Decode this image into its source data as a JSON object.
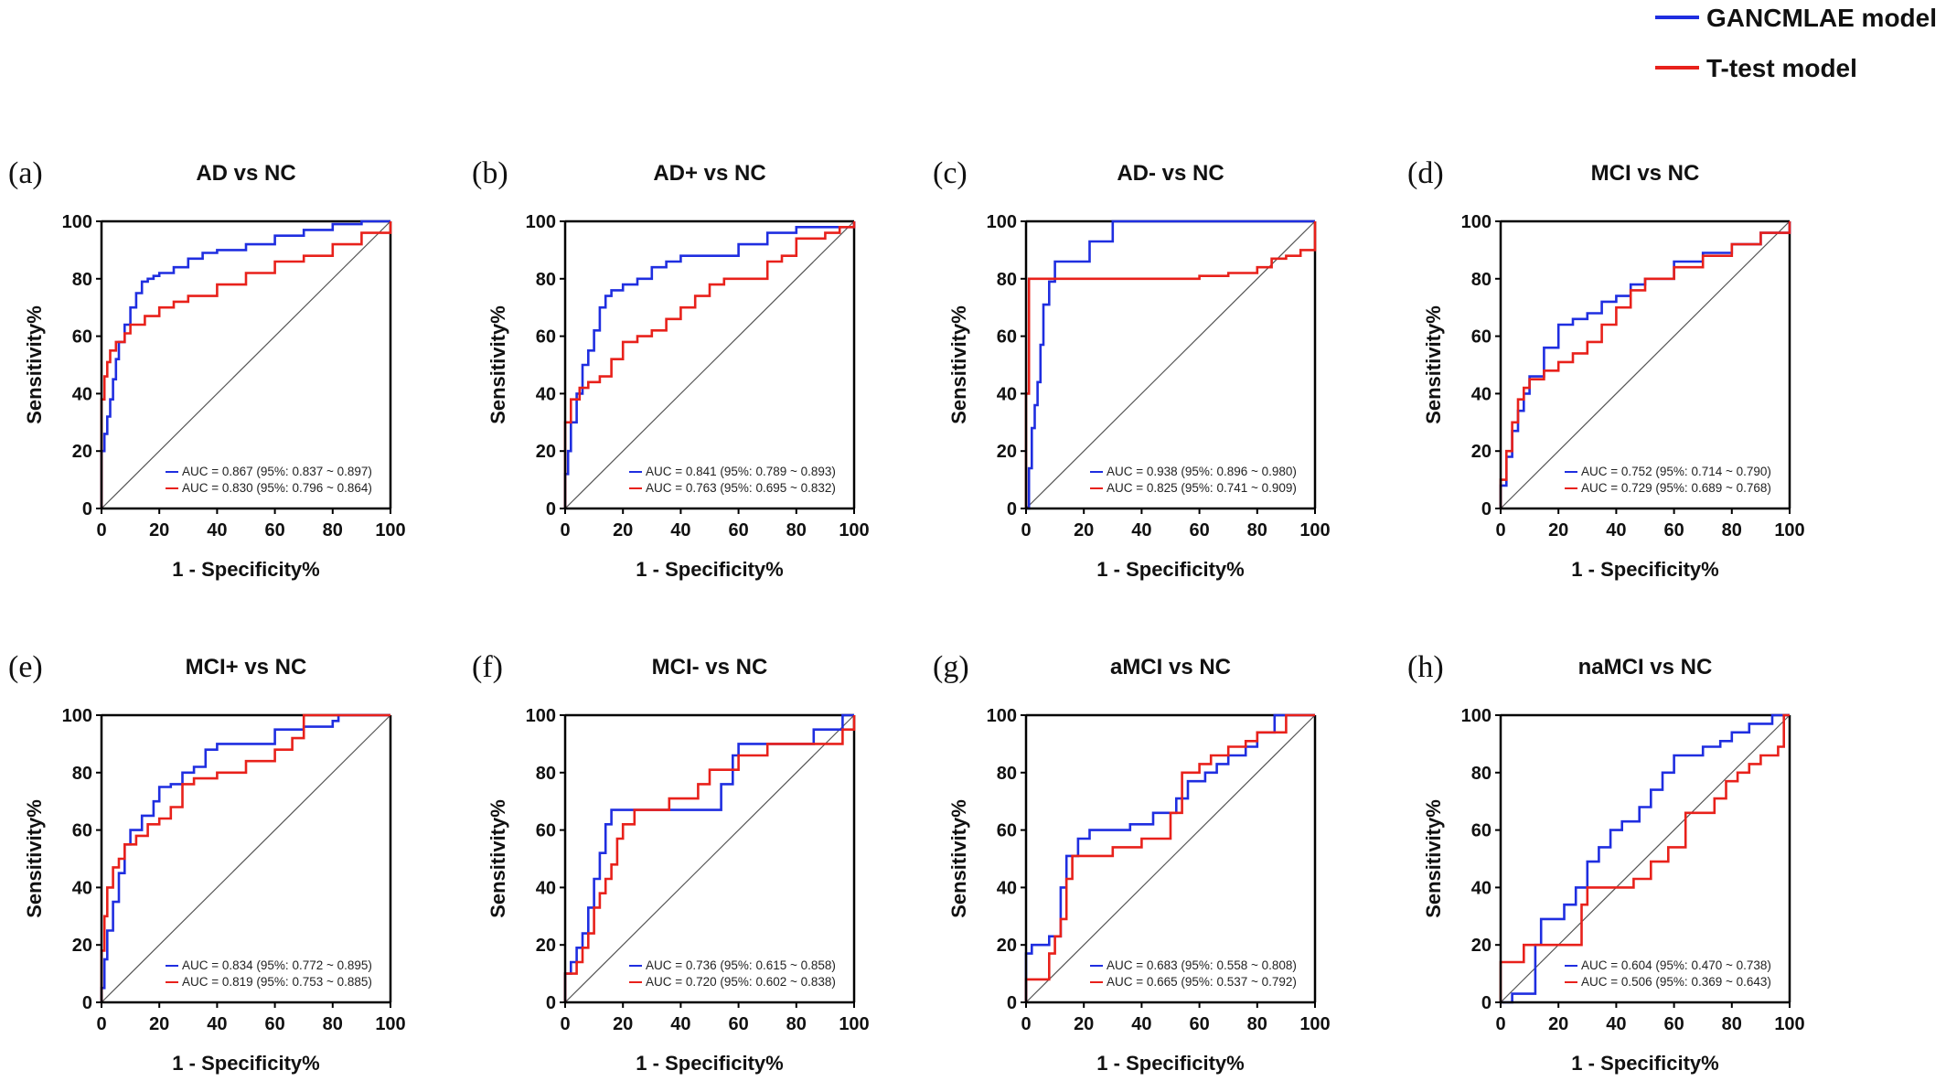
{
  "legend": {
    "items": [
      {
        "label": "GANCMLAE model",
        "color": "#1f2ee0"
      },
      {
        "label": "T-test model",
        "color": "#e8211b"
      }
    ]
  },
  "chart_data": [
    {
      "type": "line",
      "panel": "(a)",
      "title": "AD vs NC",
      "xlabel": "1 - Specificity%",
      "ylabel": "Sensitivity%",
      "xlim": [
        0,
        100
      ],
      "ylim": [
        0,
        100
      ],
      "xticks": [
        0,
        20,
        40,
        60,
        80,
        100
      ],
      "yticks": [
        0,
        20,
        40,
        60,
        80,
        100
      ],
      "diagonal": true,
      "series": [
        {
          "color": "#1f2ee0",
          "auc_text": "AUC = 0.867 (95%: 0.837 ~ 0.897)",
          "x": [
            0,
            0,
            1,
            2,
            3,
            4,
            5,
            6,
            8,
            10,
            12,
            14,
            16,
            18,
            20,
            25,
            30,
            35,
            40,
            50,
            60,
            70,
            80,
            90,
            100
          ],
          "y": [
            0,
            20,
            26,
            32,
            38,
            45,
            52,
            58,
            64,
            70,
            75,
            79,
            80,
            81,
            82,
            84,
            87,
            89,
            90,
            92,
            95,
            97,
            99,
            100,
            100
          ]
        },
        {
          "color": "#e8211b",
          "auc_text": "AUC = 0.830 (95%: 0.796 ~ 0.864)",
          "x": [
            0,
            0,
            1,
            2,
            3,
            5,
            8,
            10,
            15,
            20,
            25,
            30,
            40,
            50,
            60,
            70,
            80,
            90,
            100
          ],
          "y": [
            0,
            38,
            46,
            51,
            55,
            58,
            61,
            64,
            67,
            70,
            72,
            74,
            78,
            82,
            86,
            88,
            92,
            96,
            100
          ]
        }
      ]
    },
    {
      "type": "line",
      "panel": "(b)",
      "title": "AD+ vs NC",
      "xlabel": "1 - Specificity%",
      "ylabel": "Sensitivity%",
      "xlim": [
        0,
        100
      ],
      "ylim": [
        0,
        100
      ],
      "xticks": [
        0,
        20,
        40,
        60,
        80,
        100
      ],
      "yticks": [
        0,
        20,
        40,
        60,
        80,
        100
      ],
      "diagonal": true,
      "series": [
        {
          "color": "#1f2ee0",
          "auc_text": "AUC = 0.841 (95%: 0.789 ~ 0.893)",
          "x": [
            0,
            0,
            1,
            2,
            4,
            6,
            8,
            10,
            12,
            14,
            16,
            20,
            25,
            30,
            35,
            40,
            50,
            60,
            70,
            80,
            90,
            100
          ],
          "y": [
            0,
            12,
            20,
            30,
            40,
            50,
            55,
            62,
            70,
            74,
            76,
            78,
            80,
            84,
            86,
            88,
            88,
            92,
            96,
            98,
            98,
            100
          ]
        },
        {
          "color": "#e8211b",
          "auc_text": "AUC = 0.763 (95%: 0.695 ~ 0.832)",
          "x": [
            0,
            0,
            2,
            5,
            8,
            12,
            16,
            20,
            25,
            30,
            35,
            40,
            45,
            50,
            55,
            60,
            70,
            75,
            80,
            90,
            95,
            100
          ],
          "y": [
            0,
            30,
            38,
            42,
            44,
            46,
            52,
            58,
            60,
            62,
            66,
            70,
            74,
            78,
            80,
            80,
            86,
            88,
            94,
            96,
            98,
            100
          ]
        }
      ]
    },
    {
      "type": "line",
      "panel": "(c)",
      "title": "AD- vs NC",
      "xlabel": "1 - Specificity%",
      "ylabel": "Sensitivity%",
      "xlim": [
        0,
        100
      ],
      "ylim": [
        0,
        100
      ],
      "xticks": [
        0,
        20,
        40,
        60,
        80,
        100
      ],
      "yticks": [
        0,
        20,
        40,
        60,
        80,
        100
      ],
      "diagonal": true,
      "series": [
        {
          "color": "#1f2ee0",
          "auc_text": "AUC = 0.938 (95%: 0.896 ~ 0.980)",
          "x": [
            0,
            1,
            2,
            3,
            4,
            5,
            6,
            8,
            10,
            14,
            22,
            28,
            30,
            100
          ],
          "y": [
            0,
            14,
            28,
            36,
            44,
            57,
            71,
            79,
            86,
            86,
            93,
            93,
            100,
            100
          ]
        },
        {
          "color": "#e8211b",
          "auc_text": "AUC = 0.825 (95%: 0.741 ~ 0.909)",
          "x": [
            0,
            0,
            1,
            10,
            20,
            40,
            60,
            70,
            80,
            85,
            90,
            95,
            100,
            100
          ],
          "y": [
            0,
            40,
            80,
            80,
            80,
            80,
            81,
            82,
            84,
            87,
            88,
            90,
            92,
            100
          ]
        }
      ]
    },
    {
      "type": "line",
      "panel": "(d)",
      "title": "MCI vs NC",
      "xlabel": "1 - Specificity%",
      "ylabel": "Sensitivity%",
      "xlim": [
        0,
        100
      ],
      "ylim": [
        0,
        100
      ],
      "xticks": [
        0,
        20,
        40,
        60,
        80,
        100
      ],
      "yticks": [
        0,
        20,
        40,
        60,
        80,
        100
      ],
      "diagonal": true,
      "series": [
        {
          "color": "#1f2ee0",
          "auc_text": "AUC = 0.752 (95%: 0.714 ~ 0.790)",
          "x": [
            0,
            0,
            2,
            4,
            6,
            8,
            10,
            15,
            20,
            25,
            30,
            35,
            40,
            45,
            50,
            60,
            70,
            80,
            90,
            100
          ],
          "y": [
            0,
            8,
            18,
            27,
            34,
            40,
            46,
            56,
            64,
            66,
            68,
            72,
            74,
            78,
            80,
            86,
            89,
            92,
            96,
            100
          ]
        },
        {
          "color": "#e8211b",
          "auc_text": "AUC = 0.729 (95%: 0.689 ~ 0.768)",
          "x": [
            0,
            0,
            2,
            4,
            6,
            8,
            10,
            15,
            20,
            25,
            30,
            35,
            40,
            45,
            50,
            60,
            70,
            80,
            90,
            100
          ],
          "y": [
            0,
            10,
            20,
            30,
            38,
            42,
            45,
            48,
            51,
            54,
            58,
            64,
            70,
            76,
            80,
            84,
            88,
            92,
            96,
            100
          ]
        }
      ]
    },
    {
      "type": "line",
      "panel": "(e)",
      "title": "MCI+ vs NC",
      "xlabel": "1 - Specificity%",
      "ylabel": "Sensitivity%",
      "xlim": [
        0,
        100
      ],
      "ylim": [
        0,
        100
      ],
      "xticks": [
        0,
        20,
        40,
        60,
        80,
        100
      ],
      "yticks": [
        0,
        20,
        40,
        60,
        80,
        100
      ],
      "diagonal": true,
      "series": [
        {
          "color": "#1f2ee0",
          "auc_text": "AUC = 0.834 (95%: 0.772 ~ 0.895)",
          "x": [
            0,
            0,
            1,
            2,
            4,
            6,
            8,
            10,
            14,
            18,
            20,
            24,
            28,
            32,
            36,
            40,
            50,
            60,
            70,
            80,
            82,
            100
          ],
          "y": [
            0,
            5,
            15,
            25,
            35,
            45,
            55,
            60,
            65,
            70,
            75,
            76,
            80,
            82,
            88,
            90,
            90,
            95,
            96,
            98,
            100,
            100
          ]
        },
        {
          "color": "#e8211b",
          "auc_text": "AUC = 0.819 (95%: 0.753 ~ 0.885)",
          "x": [
            0,
            0,
            1,
            2,
            4,
            6,
            8,
            12,
            16,
            20,
            24,
            28,
            32,
            40,
            50,
            60,
            66,
            70,
            100
          ],
          "y": [
            0,
            18,
            30,
            40,
            47,
            50,
            55,
            58,
            62,
            64,
            68,
            76,
            78,
            80,
            84,
            88,
            92,
            100,
            100
          ]
        }
      ]
    },
    {
      "type": "line",
      "panel": "(f)",
      "title": "MCI- vs NC",
      "xlabel": "1 - Specificity%",
      "ylabel": "Sensitivity%",
      "xlim": [
        0,
        100
      ],
      "ylim": [
        0,
        100
      ],
      "xticks": [
        0,
        20,
        40,
        60,
        80,
        100
      ],
      "yticks": [
        0,
        20,
        40,
        60,
        80,
        100
      ],
      "diagonal": true,
      "series": [
        {
          "color": "#1f2ee0",
          "auc_text": "AUC = 0.736 (95%: 0.615 ~ 0.858)",
          "x": [
            0,
            0,
            2,
            4,
            6,
            8,
            10,
            12,
            14,
            16,
            20,
            30,
            40,
            50,
            54,
            58,
            60,
            70,
            80,
            86,
            96,
            100
          ],
          "y": [
            0,
            10,
            14,
            19,
            24,
            33,
            43,
            52,
            62,
            67,
            67,
            67,
            67,
            67,
            76,
            86,
            90,
            90,
            90,
            95,
            100,
            100
          ]
        },
        {
          "color": "#e8211b",
          "auc_text": "AUC = 0.720 (95%: 0.602 ~ 0.838)",
          "x": [
            0,
            0,
            4,
            6,
            8,
            10,
            12,
            14,
            16,
            18,
            20,
            24,
            30,
            36,
            40,
            46,
            50,
            56,
            60,
            70,
            80,
            96,
            100
          ],
          "y": [
            0,
            10,
            14,
            19,
            24,
            33,
            38,
            43,
            48,
            57,
            62,
            67,
            67,
            71,
            71,
            76,
            81,
            81,
            86,
            90,
            90,
            95,
            100
          ]
        }
      ]
    },
    {
      "type": "line",
      "panel": "(g)",
      "title": "aMCI vs NC",
      "xlabel": "1 - Specificity%",
      "ylabel": "Sensitivity%",
      "xlim": [
        0,
        100
      ],
      "ylim": [
        0,
        100
      ],
      "xticks": [
        0,
        20,
        40,
        60,
        80,
        100
      ],
      "yticks": [
        0,
        20,
        40,
        60,
        80,
        100
      ],
      "diagonal": true,
      "series": [
        {
          "color": "#1f2ee0",
          "auc_text": "AUC = 0.683 (95%: 0.558 ~ 0.808)",
          "x": [
            0,
            0,
            2,
            4,
            8,
            10,
            12,
            14,
            18,
            22,
            28,
            36,
            44,
            48,
            52,
            56,
            62,
            66,
            70,
            76,
            80,
            86,
            100
          ],
          "y": [
            0,
            17,
            20,
            20,
            23,
            23,
            40,
            51,
            57,
            60,
            60,
            62,
            66,
            66,
            71,
            77,
            80,
            83,
            86,
            89,
            94,
            100,
            100
          ]
        },
        {
          "color": "#e8211b",
          "auc_text": "AUC = 0.665 (95%: 0.537 ~ 0.792)",
          "x": [
            0,
            0,
            4,
            8,
            10,
            12,
            14,
            16,
            20,
            30,
            40,
            50,
            54,
            56,
            60,
            64,
            70,
            76,
            80,
            86,
            90,
            100
          ],
          "y": [
            0,
            8,
            8,
            17,
            23,
            29,
            43,
            51,
            51,
            54,
            57,
            66,
            80,
            80,
            83,
            86,
            89,
            91,
            94,
            94,
            100,
            100
          ]
        }
      ]
    },
    {
      "type": "line",
      "panel": "(h)",
      "title": "naMCI vs NC",
      "xlabel": "1 - Specificity%",
      "ylabel": "Sensitivity%",
      "xlim": [
        0,
        100
      ],
      "ylim": [
        0,
        100
      ],
      "xticks": [
        0,
        20,
        40,
        60,
        80,
        100
      ],
      "yticks": [
        0,
        20,
        40,
        60,
        80,
        100
      ],
      "diagonal": true,
      "series": [
        {
          "color": "#1f2ee0",
          "auc_text": "AUC = 0.604 (95%: 0.470 ~ 0.738)",
          "x": [
            0,
            4,
            6,
            12,
            14,
            16,
            22,
            26,
            30,
            34,
            38,
            42,
            48,
            52,
            56,
            60,
            64,
            70,
            76,
            80,
            86,
            94,
            100
          ],
          "y": [
            0,
            3,
            3,
            20,
            29,
            29,
            34,
            40,
            49,
            54,
            60,
            63,
            68,
            74,
            80,
            86,
            86,
            89,
            91,
            94,
            97,
            100,
            100
          ]
        },
        {
          "color": "#e8211b",
          "auc_text": "AUC = 0.506 (95%: 0.369 ~ 0.643)",
          "x": [
            0,
            0,
            4,
            8,
            20,
            28,
            30,
            40,
            46,
            52,
            58,
            64,
            70,
            74,
            78,
            82,
            86,
            90,
            94,
            96,
            98,
            100
          ],
          "y": [
            0,
            14,
            14,
            20,
            20,
            34,
            40,
            40,
            43,
            49,
            54,
            66,
            66,
            71,
            77,
            80,
            83,
            86,
            86,
            89,
            100,
            100
          ]
        }
      ]
    }
  ]
}
